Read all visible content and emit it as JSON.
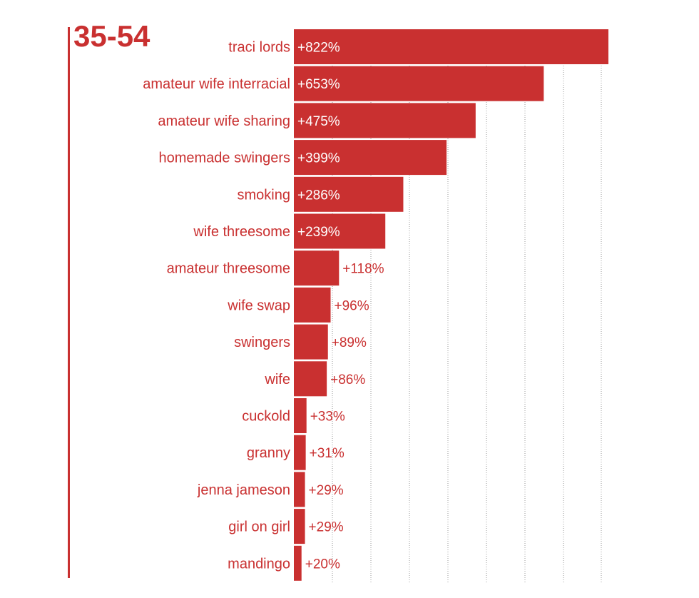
{
  "title": "35-54",
  "accent_color": "#c93030",
  "chart_data": {
    "type": "bar",
    "orientation": "horizontal",
    "title": "35-54",
    "categories": [
      "traci lords",
      "amateur wife interracial",
      "amateur wife sharing",
      "homemade swingers",
      "smoking",
      "wife threesome",
      "amateur threesome",
      "wife swap",
      "swingers",
      "wife",
      "cuckold",
      "granny",
      "jenna jameson",
      "girl on girl",
      "mandingo"
    ],
    "values": [
      822,
      653,
      475,
      399,
      286,
      239,
      118,
      96,
      89,
      86,
      33,
      31,
      29,
      29,
      20
    ],
    "value_labels": [
      "+822%",
      "+653%",
      "+475%",
      "+399%",
      "+286%",
      "+239%",
      "+118%",
      "+96%",
      "+89%",
      "+86%",
      "+33%",
      "+31%",
      "+29%",
      "+29%",
      "+20%"
    ],
    "xlim": [
      0,
      822
    ],
    "grid": true,
    "bar_color": "#c93030",
    "label_color": "#c93030"
  }
}
